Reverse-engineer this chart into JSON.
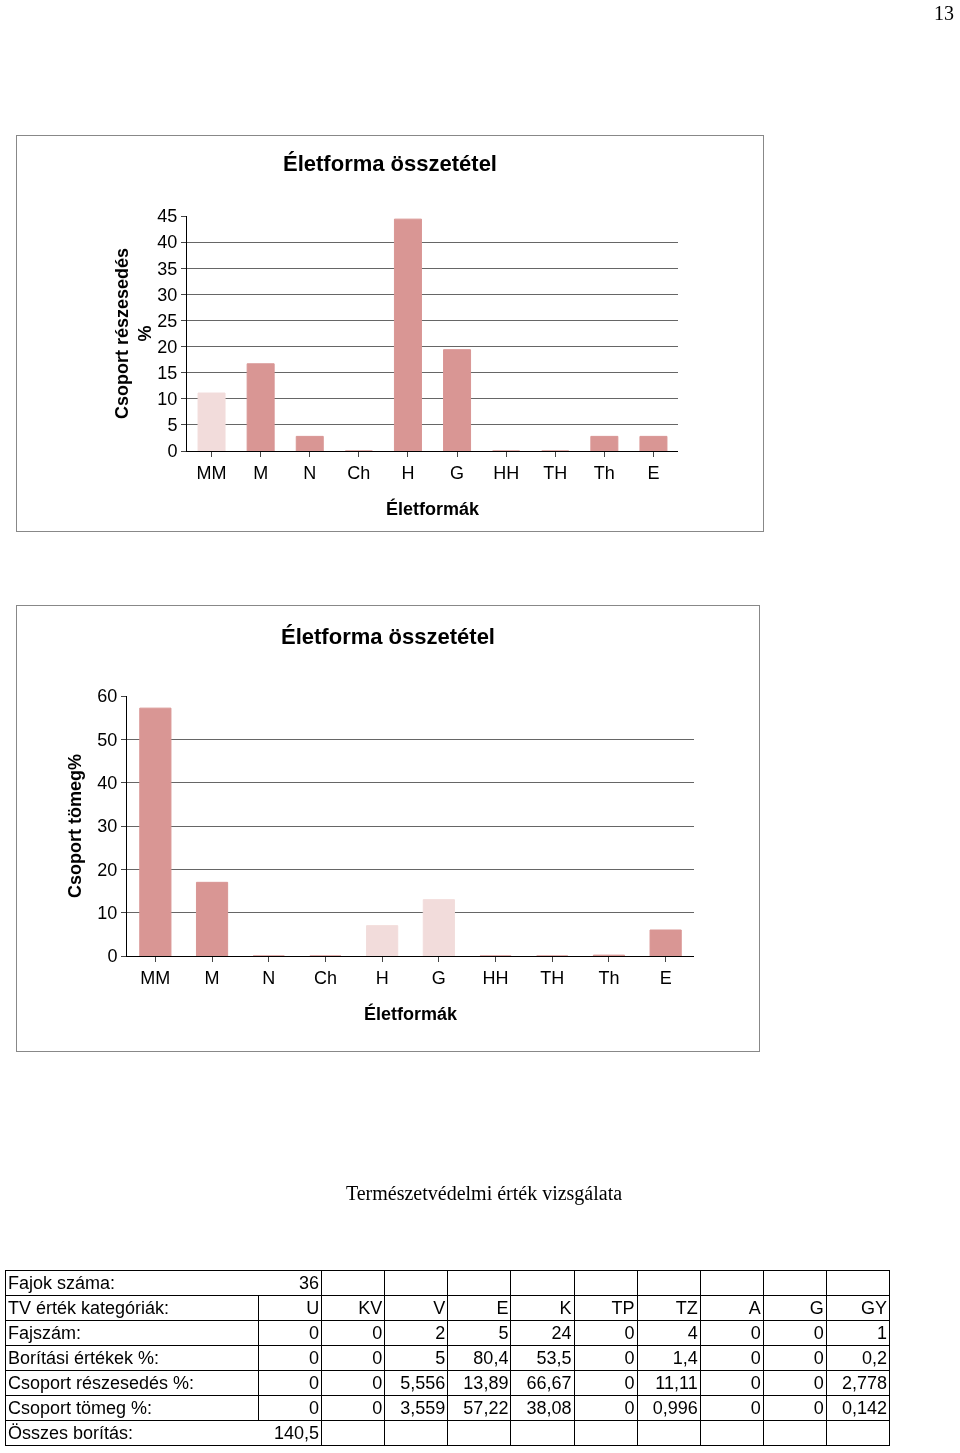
{
  "chart_data": [
    {
      "type": "bar",
      "title": "Életforma összetétel",
      "xlabel": "Életformák",
      "ylabel": "Csoport részesedés\n%",
      "categories": [
        "MM",
        "M",
        "N",
        "Ch",
        "H",
        "G",
        "HH",
        "TH",
        "Th",
        "E"
      ],
      "values": [
        11.1,
        16.7,
        2.8,
        0,
        44.4,
        19.4,
        0,
        0,
        2.8,
        2.8
      ],
      "colors": [
        "#f2dcdb",
        "#d99694",
        "#d99694",
        "#d99694",
        "#d99694",
        "#d99694",
        "#d99694",
        "#d99694",
        "#d99694",
        "#d99694"
      ],
      "ylim": [
        0,
        45
      ],
      "yticks": [
        0,
        5,
        10,
        15,
        20,
        25,
        30,
        35,
        40,
        45
      ],
      "grid": "y",
      "legend": false,
      "annotations": [
        "13"
      ]
    },
    {
      "type": "bar",
      "title": "Életforma összetétel",
      "xlabel": "Életformák",
      "ylabel": "Csoport tömeg%",
      "categories": [
        "MM",
        "M",
        "N",
        "Ch",
        "H",
        "G",
        "HH",
        "TH",
        "Th",
        "E"
      ],
      "values": [
        57.2,
        17,
        0,
        0,
        7,
        13,
        0,
        0,
        0.2,
        6
      ],
      "colors": [
        "#d99694",
        "#d99694",
        "#d99694",
        "#d99694",
        "#f2dcdb",
        "#f2dcdb",
        "#d99694",
        "#d99694",
        "#d99694",
        "#d99694"
      ],
      "ylim": [
        0,
        60
      ],
      "yticks": [
        0,
        10,
        20,
        30,
        40,
        50,
        60
      ],
      "grid": "y",
      "legend": false
    },
    {
      "type": "other",
      "title": "Természetvédelmi érték vizsgálata",
      "xlabel": "TV érték kategóriák:",
      "categories": [
        "U",
        "KV",
        "V",
        "E",
        "K",
        "TP",
        "TZ",
        "A",
        "G",
        "GY"
      ],
      "y_categories": [
        "Fajszám:",
        "Borítási értékek %:",
        "Csoport részesedés %:",
        "Csoport tömeg %:"
      ],
      "cell_labels": [
        [
          "0",
          "0",
          "2",
          "5",
          "24",
          "0",
          "4",
          "0",
          "0",
          "1"
        ],
        [
          "0",
          "0",
          "5",
          "80,4",
          "53,5",
          "0",
          "1,4",
          "0",
          "0",
          "0,2"
        ],
        [
          "0",
          "0",
          "5,556",
          "13,89",
          "66,67",
          "0",
          "11,11",
          "0",
          "0",
          "2,778"
        ],
        [
          "0",
          "0",
          "3,559",
          "57,22",
          "38,08",
          "0",
          "0,996",
          "0",
          "0",
          "0,142"
        ]
      ],
      "annotations": [
        "Fajok száma:",
        "36",
        "Összes borítás:",
        "140,5"
      ]
    }
  ]
}
